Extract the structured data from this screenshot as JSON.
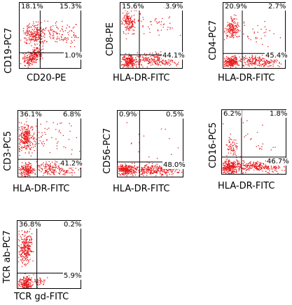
{
  "colors": {
    "dots": "#e8191c",
    "frame": "#000000"
  },
  "chart_data": [
    {
      "type": "scatter",
      "xlabel": "CD20-PE",
      "ylabel": "CD19-PC7",
      "quadrants": {
        "upper_left": "18.1%",
        "upper_right": "15.3%",
        "lower_left": "",
        "lower_right": "1.0%"
      },
      "clusters": [
        {
          "cx": 0.12,
          "cy": 0.12,
          "sx": 0.05,
          "sy": 0.05,
          "n": 220,
          "stretch": "diag"
        },
        {
          "cx": 0.22,
          "cy": 0.52,
          "sx": 0.08,
          "sy": 0.08,
          "n": 180
        },
        {
          "cx": 0.55,
          "cy": 0.55,
          "sx": 0.25,
          "sy": 0.08,
          "n": 150
        }
      ]
    },
    {
      "type": "scatter",
      "xlabel": "HLA-DR-FITC",
      "ylabel": "CD8-PE",
      "quadrants": {
        "upper_left": "15.6%",
        "upper_right": "3.9%",
        "lower_left": "",
        "lower_right": "44.1%"
      },
      "clusters": [
        {
          "cx": 0.12,
          "cy": 0.12,
          "sx": 0.05,
          "sy": 0.05,
          "n": 200
        },
        {
          "cx": 0.13,
          "cy": 0.72,
          "sx": 0.05,
          "sy": 0.08,
          "n": 140
        },
        {
          "cx": 0.55,
          "cy": 0.15,
          "sx": 0.18,
          "sy": 0.05,
          "n": 230
        },
        {
          "cx": 0.5,
          "cy": 0.7,
          "sx": 0.22,
          "sy": 0.08,
          "n": 50
        }
      ]
    },
    {
      "type": "scatter",
      "xlabel": "HLA-DR-FITC",
      "ylabel": "CD4-PC7",
      "quadrants": {
        "upper_left": "20.9%",
        "upper_right": "2.7%",
        "lower_left": "",
        "lower_right": "45.4%"
      },
      "clusters": [
        {
          "cx": 0.12,
          "cy": 0.12,
          "sx": 0.05,
          "sy": 0.04,
          "n": 200
        },
        {
          "cx": 0.14,
          "cy": 0.62,
          "sx": 0.05,
          "sy": 0.07,
          "n": 160
        },
        {
          "cx": 0.55,
          "cy": 0.13,
          "sx": 0.2,
          "sy": 0.04,
          "n": 240
        },
        {
          "cx": 0.5,
          "cy": 0.55,
          "sx": 0.2,
          "sy": 0.1,
          "n": 30
        }
      ]
    },
    {
      "type": "scatter",
      "xlabel": "HLA-DR-FITC",
      "ylabel": "CD3-PC5",
      "quadrants": {
        "upper_left": "36.1%",
        "upper_right": "6.8%",
        "lower_left": "",
        "lower_right": "41.2%"
      },
      "clusters": [
        {
          "cx": 0.12,
          "cy": 0.12,
          "sx": 0.05,
          "sy": 0.05,
          "n": 150
        },
        {
          "cx": 0.12,
          "cy": 0.6,
          "sx": 0.06,
          "sy": 0.1,
          "n": 240
        },
        {
          "cx": 0.55,
          "cy": 0.15,
          "sx": 0.2,
          "sy": 0.05,
          "n": 200
        },
        {
          "cx": 0.45,
          "cy": 0.62,
          "sx": 0.25,
          "sy": 0.12,
          "n": 70
        }
      ]
    },
    {
      "type": "scatter",
      "xlabel": "HLA-DR-FITC",
      "ylabel": "CD56-PC7",
      "quadrants": {
        "upper_left": "0.9%",
        "upper_right": "0.5%",
        "lower_left": "",
        "lower_right": "48.0%"
      },
      "clusters": [
        {
          "cx": 0.12,
          "cy": 0.13,
          "sx": 0.06,
          "sy": 0.04,
          "n": 220
        },
        {
          "cx": 0.55,
          "cy": 0.13,
          "sx": 0.2,
          "sy": 0.04,
          "n": 300
        },
        {
          "cx": 0.4,
          "cy": 0.5,
          "sx": 0.25,
          "sy": 0.2,
          "n": 15
        }
      ]
    },
    {
      "type": "scatter",
      "xlabel": "HLA-DR-FITC",
      "ylabel": "CD16-PC5",
      "quadrants": {
        "upper_left": "6.2%",
        "upper_right": "1.8%",
        "lower_left": "",
        "lower_right": "46.7%"
      },
      "clusters": [
        {
          "cx": 0.12,
          "cy": 0.13,
          "sx": 0.06,
          "sy": 0.05,
          "n": 230
        },
        {
          "cx": 0.55,
          "cy": 0.14,
          "sx": 0.2,
          "sy": 0.04,
          "n": 260
        },
        {
          "cx": 0.14,
          "cy": 0.42,
          "sx": 0.05,
          "sy": 0.08,
          "n": 60
        },
        {
          "cx": 0.5,
          "cy": 0.55,
          "sx": 0.2,
          "sy": 0.15,
          "n": 25
        }
      ]
    },
    {
      "type": "scatter",
      "xlabel": "TCR gd-FITC",
      "ylabel": "TCR ab-PC7",
      "quadrants": {
        "upper_left": "36.8%",
        "upper_right": "0.2%",
        "lower_left": "",
        "lower_right": "5.9%"
      },
      "clusters": [
        {
          "cx": 0.12,
          "cy": 0.1,
          "sx": 0.05,
          "sy": 0.05,
          "n": 200
        },
        {
          "cx": 0.12,
          "cy": 0.6,
          "sx": 0.05,
          "sy": 0.11,
          "n": 250
        },
        {
          "cx": 0.32,
          "cy": 0.12,
          "sx": 0.06,
          "sy": 0.04,
          "n": 40
        }
      ]
    }
  ]
}
